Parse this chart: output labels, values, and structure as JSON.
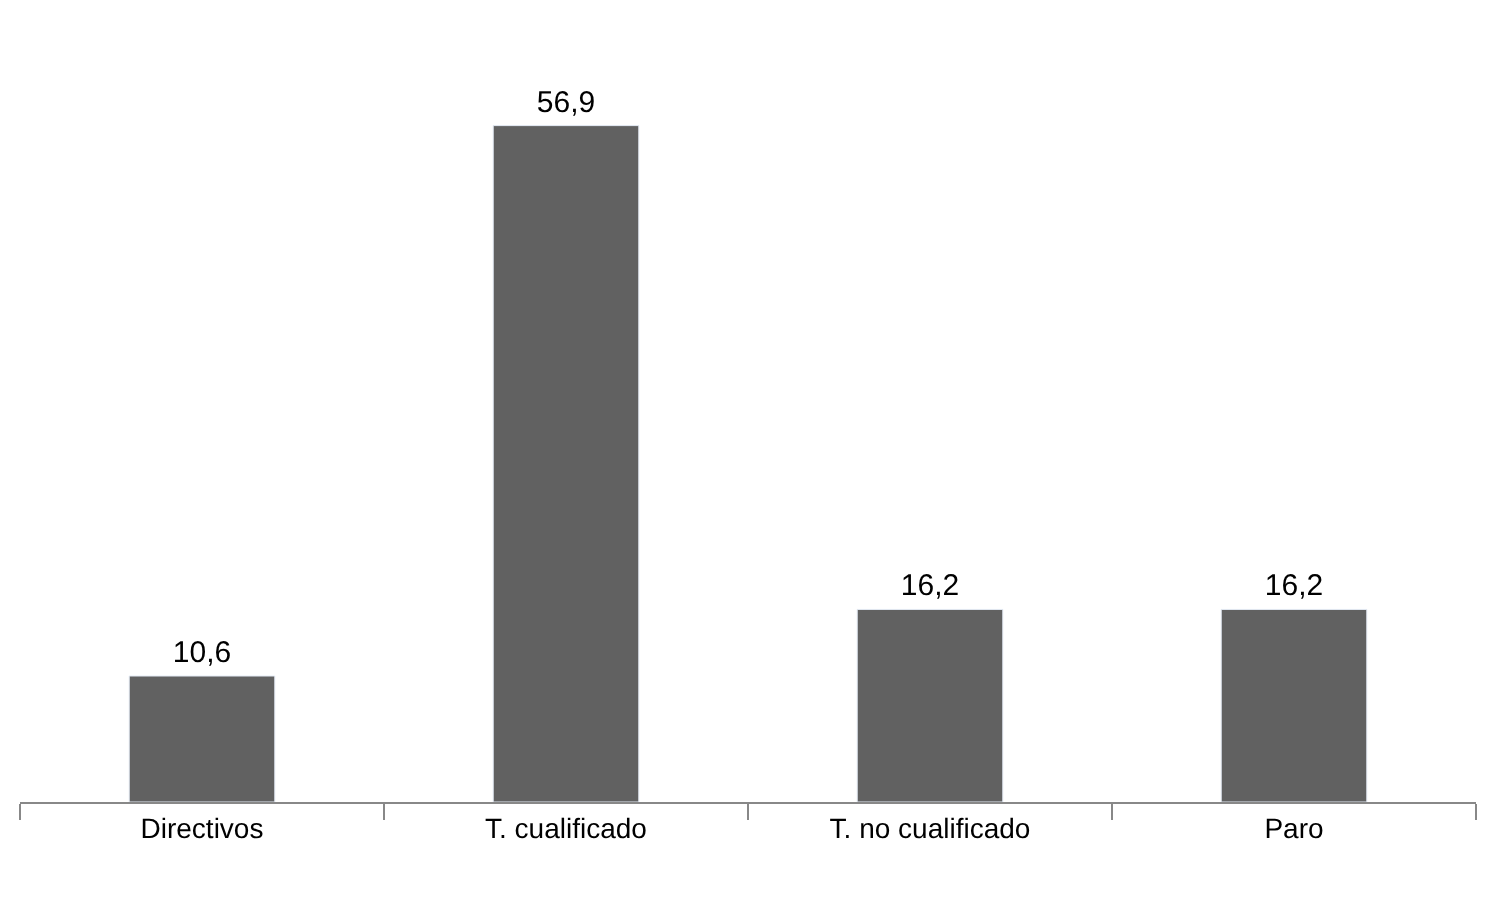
{
  "chart_data": {
    "type": "bar",
    "categories": [
      "Directivos",
      "T. cualificado",
      "T. no cualificado",
      "Paro"
    ],
    "values": [
      10.6,
      56.9,
      16.2,
      16.2
    ],
    "value_labels": [
      "10,6",
      "56,9",
      "16,2",
      "16,2"
    ],
    "color": "#616161",
    "tick_labels": "x"
  }
}
